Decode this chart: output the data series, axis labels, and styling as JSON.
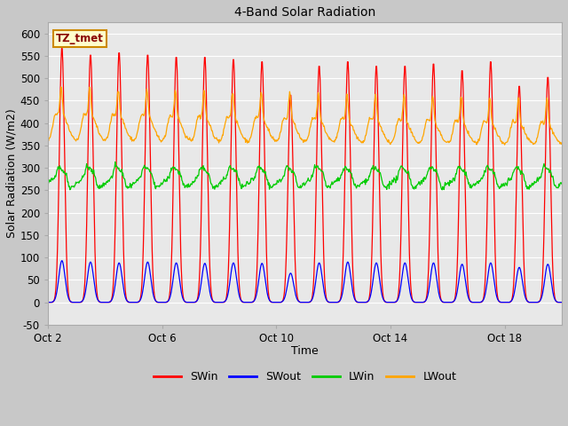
{
  "title": "4-Band Solar Radiation",
  "xlabel": "Time",
  "ylabel": "Solar Radiation (W/m2)",
  "ylim": [
    -50,
    625
  ],
  "fig_bg": "#c8c8c8",
  "plot_bg": "#e8e8e8",
  "grid_color": "#ffffff",
  "colors": {
    "SWin": "#ff0000",
    "SWout": "#0000ff",
    "LWin": "#00cc00",
    "LWout": "#ffa500"
  },
  "annotation_text": "TZ_tmet",
  "annotation_fg": "#880000",
  "annotation_bg": "#ffffcc",
  "annotation_border": "#cc8800",
  "xtick_positions": [
    0,
    4,
    8,
    12,
    16
  ],
  "xtick_labels": [
    "Oct 2",
    "Oct 6",
    "Oct 10",
    "Oct 14",
    "Oct 18"
  ],
  "ytick_start": -50,
  "ytick_end": 601,
  "ytick_step": 50,
  "xlim": [
    0,
    18
  ],
  "n_days": 18,
  "swin_peaks": [
    570,
    555,
    560,
    555,
    550,
    550,
    545,
    540,
    465,
    530,
    540,
    530,
    530,
    535,
    520,
    540,
    485,
    505
  ],
  "swout_peaks": [
    93,
    90,
    88,
    90,
    88,
    87,
    88,
    87,
    65,
    88,
    90,
    88,
    88,
    88,
    85,
    88,
    78,
    85
  ],
  "lwout_night_base": 360,
  "lwout_day_peak_base": 480,
  "lwin_base": 265,
  "lwin_amplitude": 20,
  "legend_labels": [
    "SWin",
    "SWout",
    "LWin",
    "LWout"
  ],
  "linewidth": 0.9
}
